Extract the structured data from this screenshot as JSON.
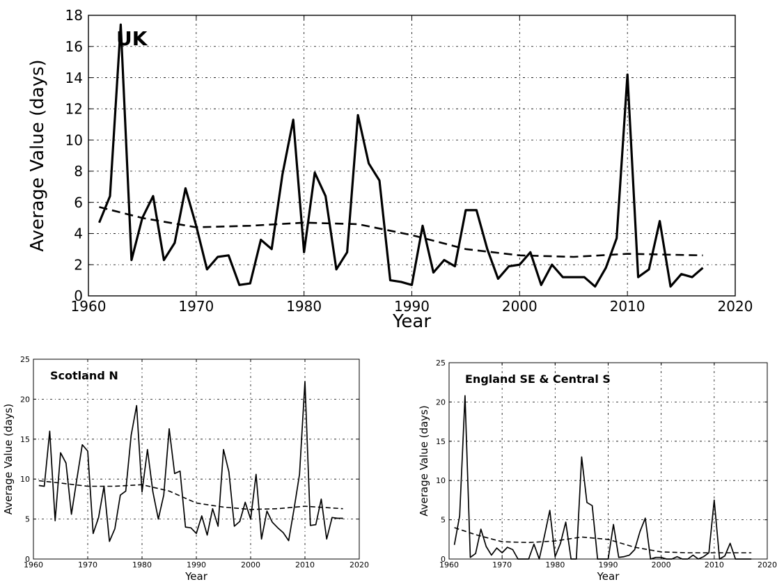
{
  "chart_data": [
    {
      "type": "line",
      "title": "UK",
      "xlabel": "Year",
      "ylabel": "Average Value (days)",
      "xlim": [
        1960,
        2020
      ],
      "ylim": [
        0,
        18
      ],
      "xticks": [
        1960,
        1970,
        1980,
        1990,
        2000,
        2010,
        2020
      ],
      "yticks": [
        0,
        2,
        4,
        6,
        8,
        10,
        12,
        14,
        16,
        18
      ],
      "grid": true,
      "series": [
        {
          "style": "solid",
          "x": [
            1961,
            1962,
            1963,
            1964,
            1965,
            1966,
            1967,
            1968,
            1969,
            1970,
            1971,
            1972,
            1973,
            1974,
            1975,
            1976,
            1977,
            1978,
            1979,
            1980,
            1981,
            1982,
            1983,
            1984,
            1985,
            1986,
            1987,
            1988,
            1989,
            1990,
            1991,
            1992,
            1993,
            1994,
            1995,
            1996,
            1997,
            1998,
            1999,
            2000,
            2001,
            2002,
            2003,
            2004,
            2005,
            2006,
            2007,
            2008,
            2009,
            2010,
            2011,
            2012,
            2013,
            2014,
            2015,
            2016,
            2017
          ],
          "y": [
            4.7,
            6.4,
            17.4,
            2.3,
            5.0,
            6.4,
            2.3,
            3.4,
            6.9,
            4.5,
            1.7,
            2.5,
            2.6,
            0.7,
            0.8,
            3.6,
            3.0,
            7.8,
            11.3,
            2.8,
            7.9,
            6.4,
            1.7,
            2.8,
            11.6,
            8.5,
            7.4,
            1.0,
            0.9,
            0.7,
            4.5,
            1.5,
            2.3,
            1.9,
            5.5,
            5.5,
            3.0,
            1.1,
            1.9,
            2.0,
            2.8,
            0.7,
            2.0,
            1.2,
            1.2,
            1.2,
            0.6,
            1.8,
            3.7,
            14.2,
            1.2,
            1.7,
            4.8,
            0.6,
            1.4,
            1.2,
            1.8
          ]
        },
        {
          "style": "dashed",
          "x": [
            1961,
            1965,
            1970,
            1975,
            1980,
            1985,
            1990,
            1995,
            2000,
            2005,
            2010,
            2017
          ],
          "y": [
            5.7,
            5.0,
            4.4,
            4.5,
            4.7,
            4.6,
            3.9,
            3.0,
            2.6,
            2.5,
            2.7,
            2.6
          ]
        }
      ]
    },
    {
      "type": "line",
      "title": "Scotland N",
      "xlabel": "Year",
      "ylabel": "Average Value (days)",
      "xlim": [
        1960,
        2020
      ],
      "ylim": [
        0,
        25
      ],
      "xticks": [
        1960,
        1970,
        1980,
        1990,
        2000,
        2010,
        2020
      ],
      "yticks": [
        0,
        5,
        10,
        15,
        20,
        25
      ],
      "grid": true,
      "series": [
        {
          "style": "solid",
          "x": [
            1961,
            1962,
            1963,
            1964,
            1965,
            1966,
            1967,
            1968,
            1969,
            1970,
            1971,
            1972,
            1973,
            1974,
            1975,
            1976,
            1977,
            1978,
            1979,
            1980,
            1981,
            1982,
            1983,
            1984,
            1985,
            1986,
            1987,
            1988,
            1989,
            1990,
            1991,
            1992,
            1993,
            1994,
            1995,
            1996,
            1997,
            1998,
            1999,
            2000,
            2001,
            2002,
            2003,
            2004,
            2005,
            2006,
            2007,
            2008,
            2009,
            2010,
            2011,
            2012,
            2013,
            2014,
            2015,
            2016,
            2017
          ],
          "y": [
            9.2,
            9.1,
            16.0,
            4.8,
            13.3,
            12.0,
            5.6,
            10.0,
            14.3,
            13.5,
            3.2,
            5.2,
            9.1,
            2.2,
            3.8,
            8.0,
            8.5,
            15.5,
            19.2,
            8.4,
            13.7,
            8.4,
            5.0,
            8.0,
            16.3,
            10.7,
            11.0,
            4.0,
            3.9,
            3.2,
            5.4,
            3.0,
            6.3,
            4.1,
            13.7,
            10.9,
            4.1,
            4.7,
            7.1,
            5.0,
            10.6,
            2.5,
            6.0,
            4.6,
            3.9,
            3.3,
            2.3,
            6.3,
            10.6,
            22.2,
            4.2,
            4.3,
            7.5,
            2.5,
            5.2,
            5.1,
            5.1
          ]
        },
        {
          "style": "dashed",
          "x": [
            1961,
            1965,
            1970,
            1975,
            1980,
            1985,
            1990,
            1995,
            2000,
            2005,
            2010,
            2017
          ],
          "y": [
            9.8,
            9.5,
            9.1,
            9.1,
            9.3,
            8.5,
            7.0,
            6.5,
            6.2,
            6.3,
            6.6,
            6.3
          ]
        }
      ]
    },
    {
      "type": "line",
      "title": "England SE & Central S",
      "xlabel": "Year",
      "ylabel": "Average Value (days)",
      "xlim": [
        1960,
        2020
      ],
      "ylim": [
        0,
        25
      ],
      "xticks": [
        1960,
        1970,
        1980,
        1990,
        2000,
        2010,
        2020
      ],
      "yticks": [
        0,
        5,
        10,
        15,
        20,
        25
      ],
      "grid": true,
      "series": [
        {
          "style": "solid",
          "x": [
            1961,
            1962,
            1963,
            1964,
            1965,
            1966,
            1967,
            1968,
            1969,
            1970,
            1971,
            1972,
            1973,
            1974,
            1975,
            1976,
            1977,
            1978,
            1979,
            1980,
            1981,
            1982,
            1983,
            1984,
            1985,
            1986,
            1987,
            1988,
            1989,
            1990,
            1991,
            1992,
            1993,
            1994,
            1995,
            1996,
            1997,
            1998,
            1999,
            2000,
            2001,
            2002,
            2003,
            2004,
            2005,
            2006,
            2007,
            2008,
            2009,
            2010,
            2011,
            2012,
            2013,
            2014,
            2015,
            2016,
            2017
          ],
          "y": [
            1.8,
            5.5,
            20.8,
            0.2,
            0.7,
            3.8,
            1.6,
            0.5,
            1.4,
            0.8,
            1.5,
            1.2,
            0.0,
            0.0,
            0.0,
            1.9,
            0.0,
            3.0,
            6.2,
            0.3,
            2.0,
            4.7,
            0.0,
            0.0,
            13.0,
            7.2,
            6.8,
            0.0,
            0.0,
            0.0,
            4.4,
            0.2,
            0.3,
            0.5,
            1.2,
            3.5,
            5.2,
            0.0,
            0.2,
            0.2,
            0.0,
            0.0,
            0.3,
            0.0,
            0.0,
            0.5,
            0.0,
            0.3,
            0.8,
            7.5,
            0.0,
            0.4,
            2.0,
            0.0,
            0.0,
            0.0,
            0.0
          ]
        },
        {
          "style": "dashed",
          "x": [
            1961,
            1965,
            1970,
            1975,
            1980,
            1985,
            1990,
            1995,
            2000,
            2005,
            2010,
            2017
          ],
          "y": [
            4.0,
            3.1,
            2.2,
            2.1,
            2.3,
            2.8,
            2.5,
            1.5,
            0.9,
            0.8,
            0.8,
            0.8
          ]
        }
      ]
    }
  ]
}
